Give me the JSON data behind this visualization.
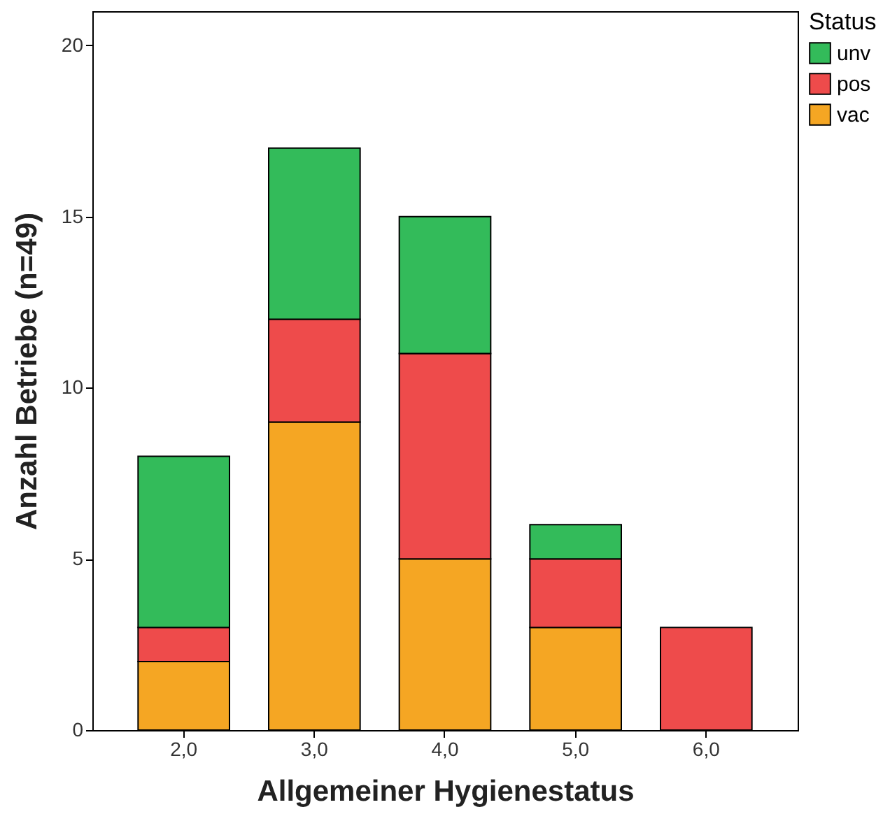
{
  "chart_data": {
    "type": "bar",
    "stacked": true,
    "xlabel": "Allgemeiner Hygienestatus",
    "ylabel": "Anzahl Betriebe (n=49)",
    "legend_title": "Status",
    "legend": "right",
    "grid": false,
    "categories": [
      "2,0",
      "3,0",
      "4,0",
      "5,0",
      "6,0"
    ],
    "ylim": [
      0,
      21
    ],
    "yticks": [
      0,
      5,
      10,
      15,
      20
    ],
    "series": [
      {
        "name": "vac",
        "color": "#f5a623",
        "values": [
          2,
          9,
          5,
          3,
          0
        ]
      },
      {
        "name": "pos",
        "color": "#ee4b4b",
        "values": [
          1,
          3,
          6,
          2,
          3
        ]
      },
      {
        "name": "unv",
        "color": "#33bb5a",
        "values": [
          5,
          5,
          4,
          1,
          0
        ]
      }
    ]
  }
}
